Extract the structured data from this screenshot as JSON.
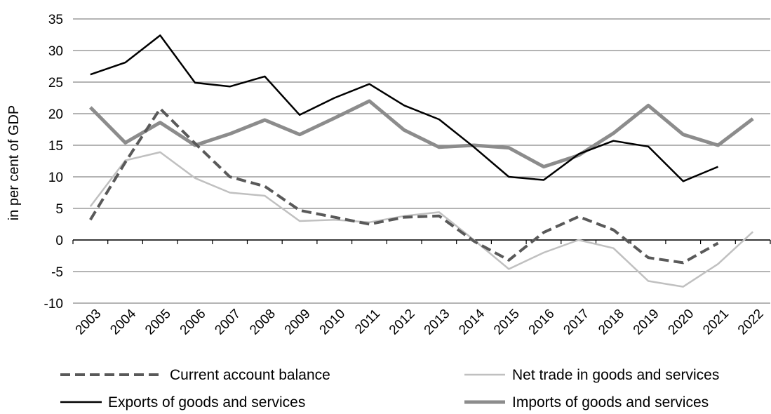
{
  "chart_data": {
    "type": "line",
    "title": "",
    "xlabel": "",
    "ylabel": "in per cent of GDP",
    "ylim": [
      -10,
      35
    ],
    "yticks": [
      -10,
      -5,
      0,
      5,
      10,
      15,
      20,
      25,
      30,
      35
    ],
    "grid": true,
    "legend_position": "bottom",
    "categories": [
      "2003",
      "2004",
      "2005",
      "2006",
      "2007",
      "2008",
      "2009",
      "2010",
      "2011",
      "2012",
      "2013",
      "2014",
      "2015",
      "2016",
      "2017",
      "2018",
      "2019",
      "2020",
      "2021",
      "2022"
    ],
    "series": [
      {
        "name": "Current account balance",
        "color": "#595959",
        "style": "dashed",
        "width": 4,
        "values": [
          3.2,
          12.3,
          20.8,
          15.3,
          10.0,
          8.5,
          4.7,
          3.6,
          2.5,
          3.6,
          3.8,
          -0.2,
          -3.2,
          1.2,
          3.7,
          1.6,
          -2.8,
          -3.6,
          -0.5,
          null
        ]
      },
      {
        "name": "Net trade in goods and services",
        "color": "#c0c0c0",
        "style": "solid",
        "width": 2.5,
        "values": [
          5.3,
          12.6,
          13.9,
          9.8,
          7.5,
          7.0,
          3.0,
          3.2,
          2.8,
          3.8,
          4.4,
          0.0,
          -4.6,
          -2.0,
          0.0,
          -1.3,
          -6.5,
          -7.4,
          -3.8,
          1.3
        ]
      },
      {
        "name": "Exports of goods and services",
        "color": "#000000",
        "style": "solid",
        "width": 2.5,
        "values": [
          26.2,
          28.1,
          32.4,
          24.9,
          24.3,
          25.9,
          19.8,
          22.5,
          24.7,
          21.3,
          19.1,
          14.7,
          10.0,
          9.5,
          13.6,
          15.7,
          14.8,
          9.3,
          11.6,
          null
        ]
      },
      {
        "name": "Imports of goods and services",
        "color": "#8c8c8c",
        "style": "solid",
        "width": 5,
        "values": [
          21.0,
          15.4,
          18.6,
          15.0,
          16.8,
          19.0,
          16.7,
          19.3,
          22.0,
          17.4,
          14.7,
          15.0,
          14.6,
          11.6,
          13.4,
          16.9,
          21.3,
          16.7,
          15.0,
          19.2
        ]
      }
    ]
  }
}
